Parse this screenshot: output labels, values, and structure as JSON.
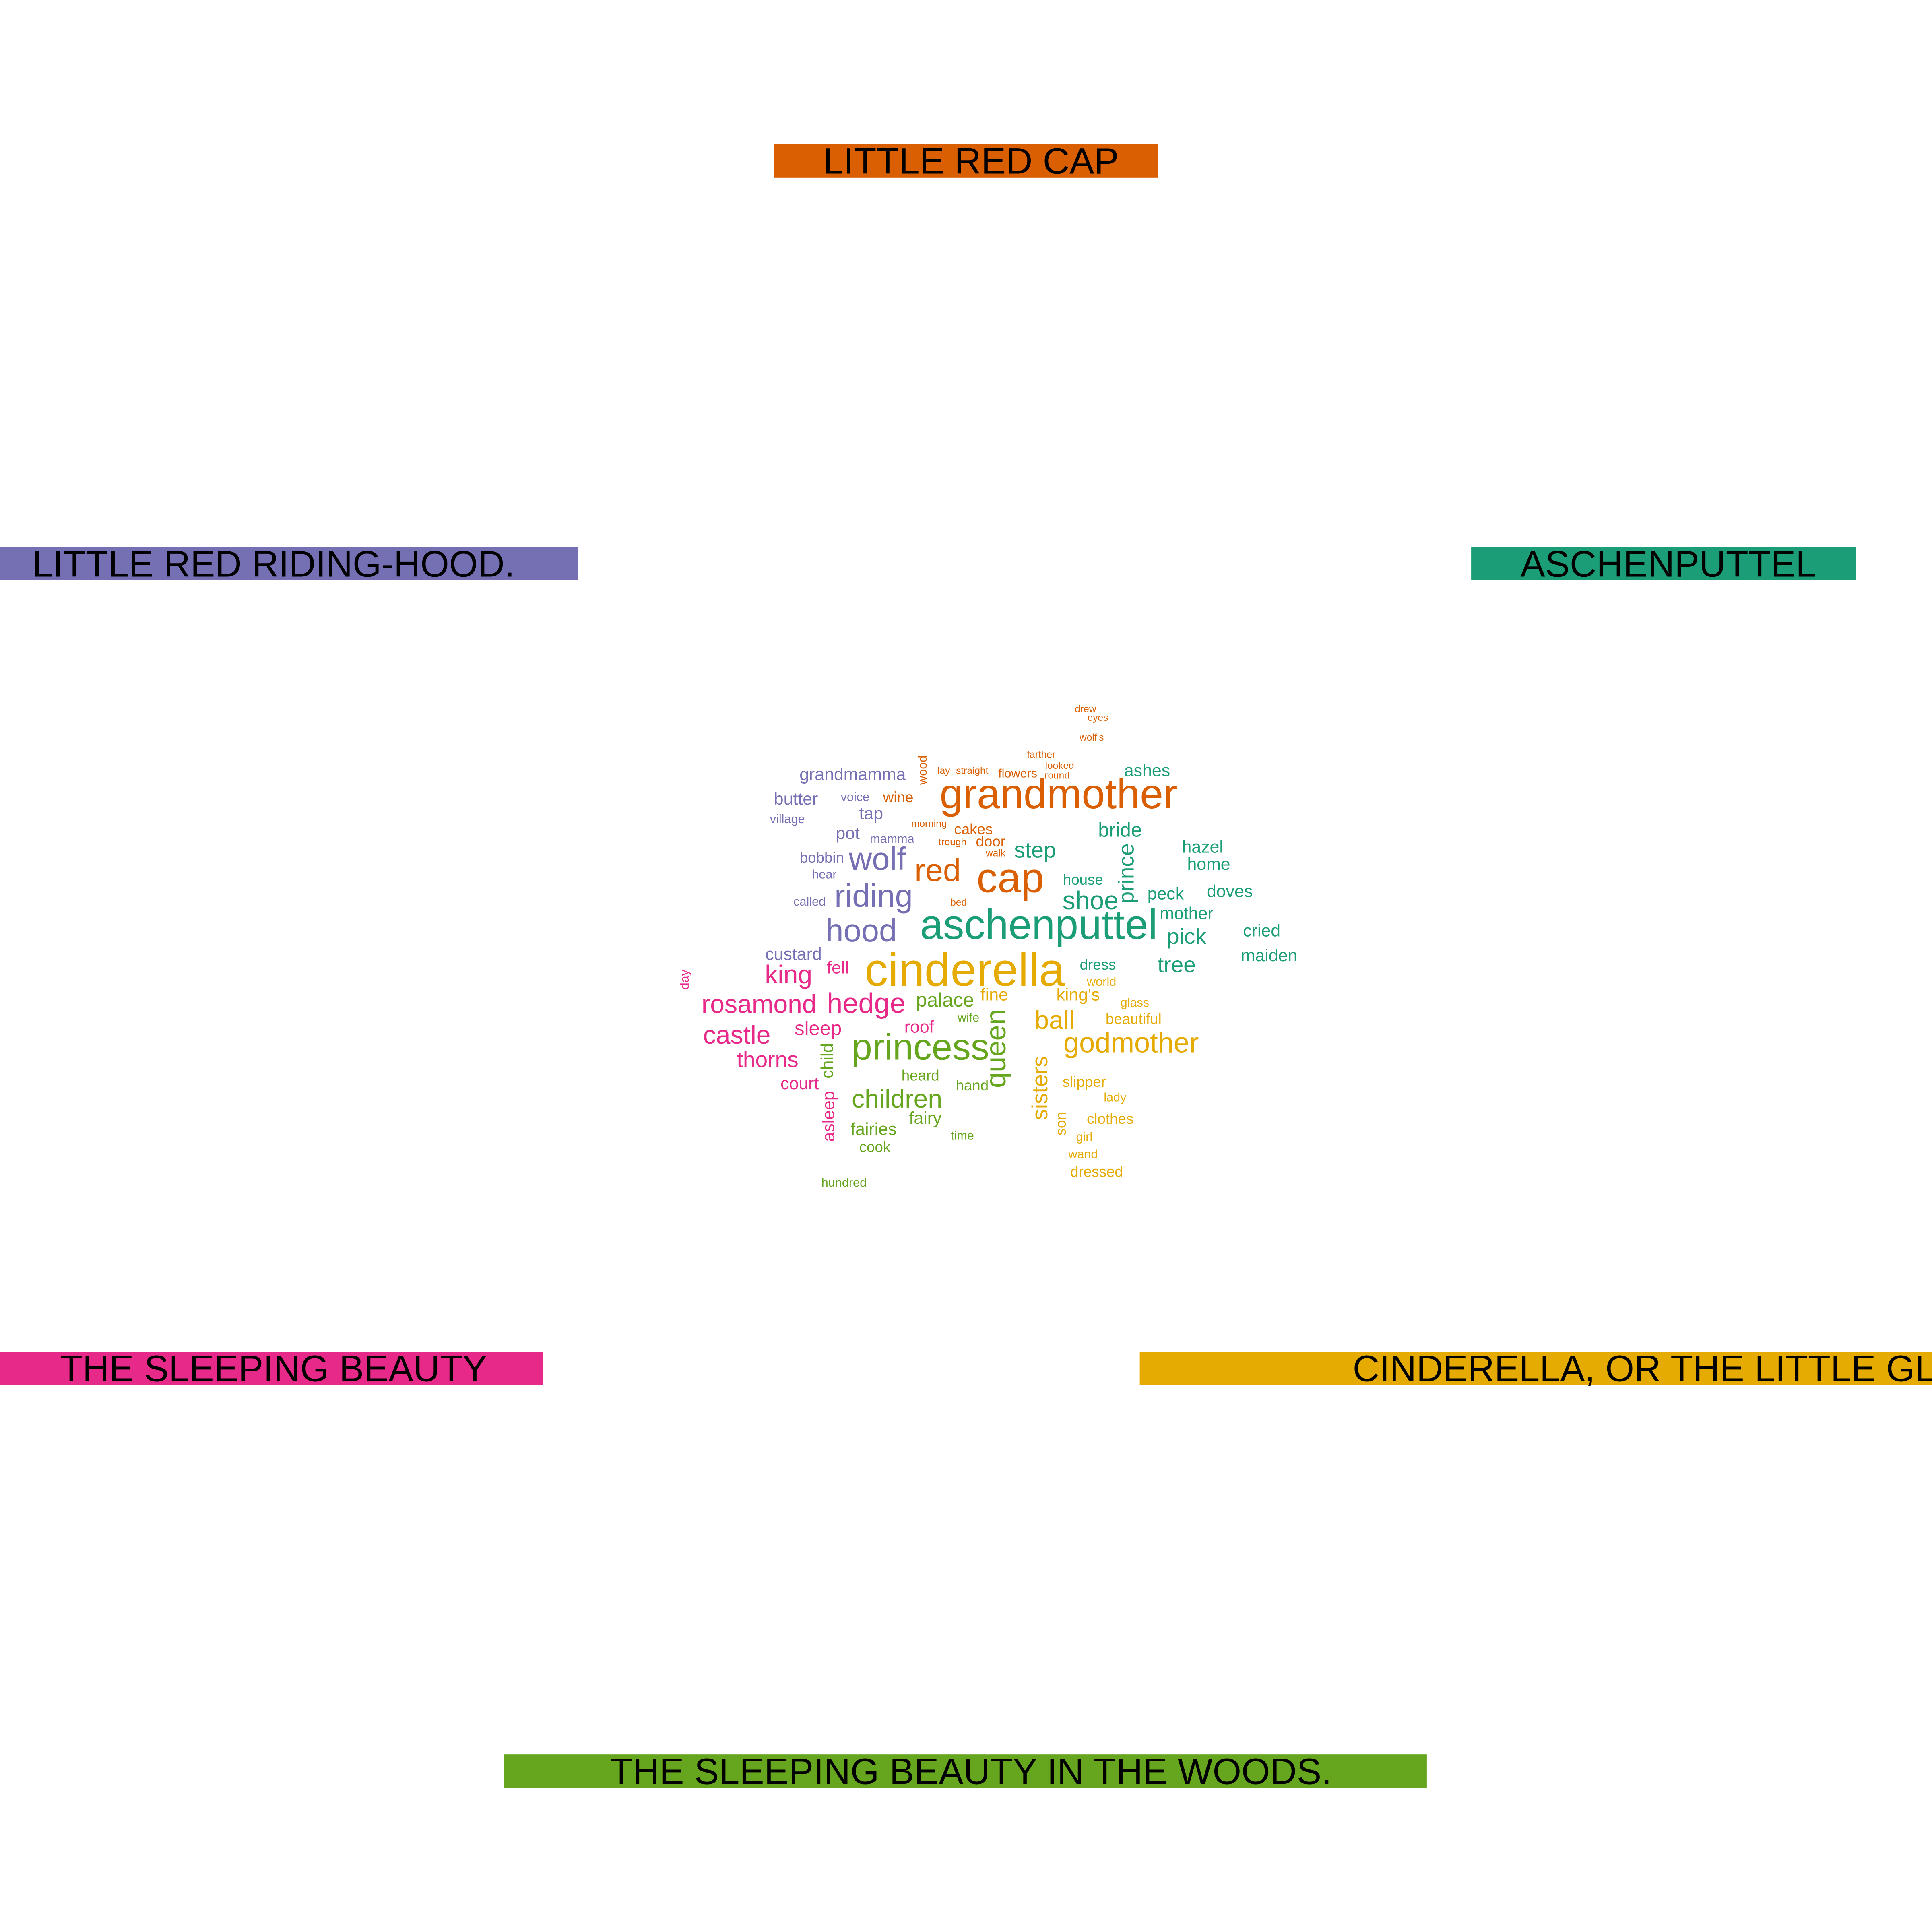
{
  "chart_data": {
    "type": "comparison_wordcloud",
    "groups": [
      {
        "name": "LITTLE RED CAP",
        "color": "#D95F02"
      },
      {
        "name": "LITTLE RED RIDING-HOOD.",
        "color": "#7570B3"
      },
      {
        "name": "ASCHENPUTTEL",
        "color": "#1B9E77"
      },
      {
        "name": "THE SLEEPING BEAUTY",
        "color": "#E7298A"
      },
      {
        "name": "CINDERELLA, OR THE LITTLE GLASS SLIPPER.",
        "color": "#E6AB02"
      },
      {
        "name": "THE SLEEPING BEAUTY IN THE WOODS.",
        "color": "#66A61E"
      }
    ],
    "words": [
      {
        "text": "grandmother",
        "group": 0,
        "size": 11
      },
      {
        "text": "cap",
        "group": 0,
        "size": 11
      },
      {
        "text": "red",
        "group": 0,
        "size": 9
      },
      {
        "text": "wine",
        "group": 0,
        "size": 3
      },
      {
        "text": "cakes",
        "group": 0,
        "size": 3
      },
      {
        "text": "door",
        "group": 0,
        "size": 3
      },
      {
        "text": "flowers",
        "group": 0,
        "size": 2
      },
      {
        "text": "wood",
        "group": 0,
        "size": 2
      },
      {
        "text": "lay",
        "group": 0,
        "size": 1
      },
      {
        "text": "straight",
        "group": 0,
        "size": 1
      },
      {
        "text": "farther",
        "group": 0,
        "size": 1
      },
      {
        "text": "looked",
        "group": 0,
        "size": 1
      },
      {
        "text": "round",
        "group": 0,
        "size": 1
      },
      {
        "text": "drew",
        "group": 0,
        "size": 1
      },
      {
        "text": "eyes",
        "group": 0,
        "size": 1
      },
      {
        "text": "wolf's",
        "group": 0,
        "size": 1
      },
      {
        "text": "morning",
        "group": 0,
        "size": 1
      },
      {
        "text": "trough",
        "group": 0,
        "size": 1
      },
      {
        "text": "walk",
        "group": 0,
        "size": 1
      },
      {
        "text": "bed",
        "group": 0,
        "size": 1
      },
      {
        "text": "wolf",
        "group": 1,
        "size": 9
      },
      {
        "text": "riding",
        "group": 1,
        "size": 9
      },
      {
        "text": "hood",
        "group": 1,
        "size": 9
      },
      {
        "text": "grandmamma",
        "group": 1,
        "size": 4
      },
      {
        "text": "butter",
        "group": 1,
        "size": 4
      },
      {
        "text": "tap",
        "group": 1,
        "size": 4
      },
      {
        "text": "pot",
        "group": 1,
        "size": 4
      },
      {
        "text": "custard",
        "group": 1,
        "size": 4
      },
      {
        "text": "bobbin",
        "group": 1,
        "size": 3
      },
      {
        "text": "voice",
        "group": 1,
        "size": 2
      },
      {
        "text": "mamma",
        "group": 1,
        "size": 2
      },
      {
        "text": "village",
        "group": 1,
        "size": 2
      },
      {
        "text": "hear",
        "group": 1,
        "size": 2
      },
      {
        "text": "called",
        "group": 1,
        "size": 2
      },
      {
        "text": "aschenputtel",
        "group": 2,
        "size": 11
      },
      {
        "text": "shoe",
        "group": 2,
        "size": 7
      },
      {
        "text": "step",
        "group": 2,
        "size": 6
      },
      {
        "text": "prince",
        "group": 2,
        "size": 6
      },
      {
        "text": "pick",
        "group": 2,
        "size": 6
      },
      {
        "text": "tree",
        "group": 2,
        "size": 6
      },
      {
        "text": "bride",
        "group": 2,
        "size": 5
      },
      {
        "text": "ashes",
        "group": 2,
        "size": 4
      },
      {
        "text": "hazel",
        "group": 2,
        "size": 4
      },
      {
        "text": "home",
        "group": 2,
        "size": 4
      },
      {
        "text": "doves",
        "group": 2,
        "size": 4
      },
      {
        "text": "mother",
        "group": 2,
        "size": 4
      },
      {
        "text": "cried",
        "group": 2,
        "size": 4
      },
      {
        "text": "maiden",
        "group": 2,
        "size": 4
      },
      {
        "text": "peck",
        "group": 2,
        "size": 4
      },
      {
        "text": "house",
        "group": 2,
        "size": 3
      },
      {
        "text": "dress",
        "group": 2,
        "size": 3
      },
      {
        "text": "king",
        "group": 3,
        "size": 7
      },
      {
        "text": "rosamond",
        "group": 3,
        "size": 7
      },
      {
        "text": "hedge",
        "group": 3,
        "size": 8
      },
      {
        "text": "castle",
        "group": 3,
        "size": 7
      },
      {
        "text": "thorns",
        "group": 3,
        "size": 6
      },
      {
        "text": "sleep",
        "group": 3,
        "size": 5
      },
      {
        "text": "roof",
        "group": 3,
        "size": 4
      },
      {
        "text": "fell",
        "group": 3,
        "size": 4
      },
      {
        "text": "court",
        "group": 3,
        "size": 4
      },
      {
        "text": "asleep",
        "group": 3,
        "size": 4
      },
      {
        "text": "day",
        "group": 3,
        "size": 2
      },
      {
        "text": "cinderella",
        "group": 4,
        "size": 14
      },
      {
        "text": "godmother",
        "group": 4,
        "size": 8
      },
      {
        "text": "ball",
        "group": 4,
        "size": 7
      },
      {
        "text": "sisters",
        "group": 4,
        "size": 6
      },
      {
        "text": "king's",
        "group": 4,
        "size": 4
      },
      {
        "text": "fine",
        "group": 4,
        "size": 4
      },
      {
        "text": "beautiful",
        "group": 4,
        "size": 3
      },
      {
        "text": "slipper",
        "group": 4,
        "size": 3
      },
      {
        "text": "clothes",
        "group": 4,
        "size": 3
      },
      {
        "text": "son",
        "group": 4,
        "size": 3
      },
      {
        "text": "dressed",
        "group": 4,
        "size": 3
      },
      {
        "text": "lady",
        "group": 4,
        "size": 2
      },
      {
        "text": "glass",
        "group": 4,
        "size": 2
      },
      {
        "text": "world",
        "group": 4,
        "size": 2
      },
      {
        "text": "girl",
        "group": 4,
        "size": 2
      },
      {
        "text": "wand",
        "group": 4,
        "size": 2
      },
      {
        "text": "princess",
        "group": 5,
        "size": 10
      },
      {
        "text": "queen",
        "group": 5,
        "size": 8
      },
      {
        "text": "children",
        "group": 5,
        "size": 7
      },
      {
        "text": "palace",
        "group": 5,
        "size": 5
      },
      {
        "text": "child",
        "group": 5,
        "size": 4
      },
      {
        "text": "fairy",
        "group": 5,
        "size": 4
      },
      {
        "text": "fairies",
        "group": 5,
        "size": 4
      },
      {
        "text": "heard",
        "group": 5,
        "size": 3
      },
      {
        "text": "hand",
        "group": 5,
        "size": 3
      },
      {
        "text": "cook",
        "group": 5,
        "size": 3
      },
      {
        "text": "wife",
        "group": 5,
        "size": 2
      },
      {
        "text": "time",
        "group": 5,
        "size": 2
      },
      {
        "text": "hundred",
        "group": 5,
        "size": 2
      }
    ]
  }
}
